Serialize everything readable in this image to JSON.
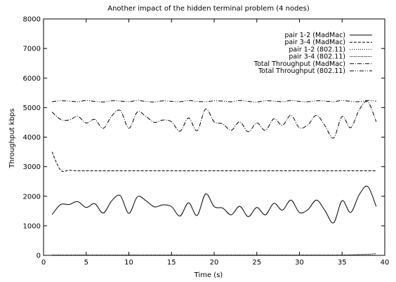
{
  "chart_data": {
    "type": "line",
    "title": "Another impact of the hidden terminal problem (4 nodes)",
    "xlabel": "Time (s)",
    "ylabel": "Throughput kbps",
    "xlim": [
      0,
      40
    ],
    "ylim": [
      0,
      8000
    ],
    "xticks": [
      0,
      5,
      10,
      15,
      20,
      25,
      30,
      35,
      40
    ],
    "yticks": [
      0,
      1000,
      2000,
      3000,
      4000,
      5000,
      6000,
      7000,
      8000
    ],
    "grid": false,
    "legend_position": "top-right",
    "series": [
      {
        "name": "pair 1-2 (MadMac)",
        "style": "solid",
        "x": [
          1,
          2,
          3,
          4,
          5,
          6,
          7,
          8,
          9,
          10,
          11,
          12,
          13,
          14,
          15,
          16,
          17,
          18,
          19,
          20,
          21,
          22,
          23,
          24,
          25,
          26,
          27,
          28,
          29,
          30,
          31,
          32,
          33,
          34,
          35,
          36,
          37,
          38,
          39
        ],
        "y": [
          1380,
          1720,
          1720,
          1820,
          1620,
          1750,
          1430,
          1850,
          2020,
          1420,
          1980,
          1850,
          1640,
          1710,
          1650,
          1330,
          1780,
          1350,
          2080,
          1650,
          1600,
          1370,
          1660,
          1310,
          1620,
          1370,
          1760,
          1530,
          1870,
          1450,
          1550,
          1870,
          1510,
          1100,
          1850,
          1450,
          2050,
          2330,
          1650
        ]
      },
      {
        "name": "pair 3-4 (MadMac)",
        "style": "dashed",
        "x": [
          1,
          2,
          3,
          4,
          5,
          6,
          7,
          8,
          9,
          10,
          11,
          12,
          13,
          14,
          15,
          16,
          17,
          18,
          19,
          20,
          21,
          22,
          23,
          24,
          25,
          26,
          27,
          28,
          29,
          30,
          31,
          32,
          33,
          34,
          35,
          36,
          37,
          38,
          39
        ],
        "y": [
          3500,
          2880,
          2880,
          2860,
          2860,
          2860,
          2860,
          2860,
          2860,
          2860,
          2860,
          2860,
          2860,
          2860,
          2860,
          2860,
          2860,
          2860,
          2860,
          2860,
          2860,
          2860,
          2860,
          2860,
          2860,
          2860,
          2860,
          2860,
          2860,
          2860,
          2860,
          2860,
          2860,
          2860,
          2860,
          2860,
          2860,
          2860,
          2860
        ]
      },
      {
        "name": "pair 1-2 (802.11)",
        "style": "dotted-fine",
        "x": [
          1,
          5,
          10,
          15,
          20,
          25,
          30,
          35,
          38,
          39
        ],
        "y": [
          10,
          10,
          10,
          10,
          10,
          10,
          10,
          10,
          10,
          10
        ]
      },
      {
        "name": "pair 3-4 (802.11)",
        "style": "dotted",
        "x": [
          1,
          5,
          10,
          15,
          20,
          25,
          30,
          35,
          38,
          39
        ],
        "y": [
          10,
          10,
          10,
          10,
          10,
          10,
          10,
          10,
          40,
          60
        ]
      },
      {
        "name": "Total Throughput (MadMac)",
        "style": "dash-dot",
        "x": [
          1,
          2,
          3,
          4,
          5,
          6,
          7,
          8,
          9,
          10,
          11,
          12,
          13,
          14,
          15,
          16,
          17,
          18,
          19,
          20,
          21,
          22,
          23,
          24,
          25,
          26,
          27,
          28,
          29,
          30,
          31,
          32,
          33,
          34,
          35,
          36,
          37,
          38,
          39
        ],
        "y": [
          4850,
          4600,
          4580,
          4700,
          4480,
          4600,
          4300,
          4720,
          4900,
          4300,
          4850,
          4700,
          4500,
          4580,
          4520,
          4200,
          4650,
          4220,
          4950,
          4520,
          4450,
          4230,
          4520,
          4180,
          4480,
          4230,
          4620,
          4400,
          4740,
          4320,
          4420,
          4740,
          4380,
          3970,
          4700,
          4320,
          4920,
          5200,
          4520
        ]
      },
      {
        "name": "Total Throughput (802.11)",
        "style": "dash-dot-dot",
        "x": [
          1,
          2,
          3,
          4,
          5,
          6,
          7,
          8,
          9,
          10,
          11,
          12,
          13,
          14,
          15,
          16,
          17,
          18,
          19,
          20,
          21,
          22,
          23,
          24,
          25,
          26,
          27,
          28,
          29,
          30,
          31,
          32,
          33,
          34,
          35,
          36,
          37,
          38,
          39
        ],
        "y": [
          5200,
          5230,
          5220,
          5200,
          5240,
          5210,
          5190,
          5230,
          5220,
          5200,
          5240,
          5210,
          5190,
          5230,
          5210,
          5200,
          5240,
          5210,
          5200,
          5230,
          5220,
          5200,
          5240,
          5210,
          5190,
          5230,
          5220,
          5200,
          5240,
          5210,
          5200,
          5230,
          5220,
          5200,
          5240,
          5210,
          5200,
          5240,
          5220
        ]
      }
    ]
  }
}
